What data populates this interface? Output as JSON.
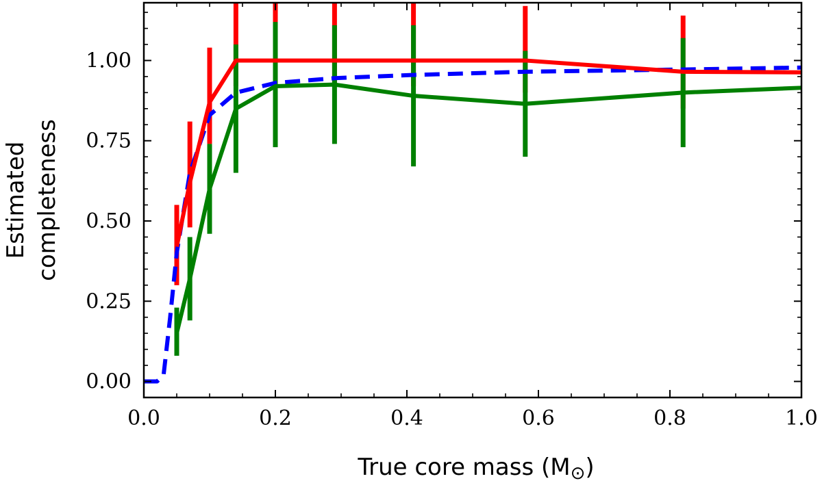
{
  "chart_data": {
    "type": "line",
    "xlabel": "True core mass (M",
    "xlabel_symbol": "⊙",
    "xlabel_close": ")",
    "ylabel_lines": [
      "Estimated",
      "completeness"
    ],
    "xlim": [
      0.0,
      1.0
    ],
    "ylim": [
      -0.05,
      1.18
    ],
    "x_ticks": [
      0.0,
      0.2,
      0.4,
      0.6,
      0.8,
      1.0
    ],
    "x_tick_labels": [
      "0.0",
      "0.2",
      "0.4",
      "0.6",
      "0.8",
      "1.0"
    ],
    "y_ticks": [
      0.0,
      0.25,
      0.5,
      0.75,
      1.0
    ],
    "y_tick_labels": [
      "0.00",
      "0.25",
      "0.50",
      "0.75",
      "1.00"
    ],
    "grid": false,
    "series": [
      {
        "name": "dashed-blue",
        "color": "#0000ff",
        "style": "dashed",
        "x": [
          0.0,
          0.02,
          0.03,
          0.04,
          0.05,
          0.07,
          0.1,
          0.14,
          0.2,
          0.29,
          0.41,
          0.58,
          0.82,
          1.0
        ],
        "y": [
          0.0,
          0.0,
          0.02,
          0.2,
          0.4,
          0.65,
          0.83,
          0.9,
          0.93,
          0.945,
          0.955,
          0.965,
          0.972,
          0.978
        ]
      },
      {
        "name": "red",
        "color": "#ff0000",
        "style": "solid",
        "x": [
          0.05,
          0.07,
          0.1,
          0.14,
          0.2,
          0.29,
          0.41,
          0.58,
          0.82,
          1.0
        ],
        "y": [
          0.42,
          0.62,
          0.87,
          1.0,
          1.0,
          1.0,
          1.0,
          1.0,
          0.965,
          0.963
        ],
        "err_low": [
          0.3,
          0.48,
          0.74,
          0.92,
          0.92,
          0.92,
          0.92,
          0.9,
          0.85,
          null
        ],
        "err_high": [
          0.55,
          0.81,
          1.04,
          1.18,
          1.18,
          1.18,
          1.18,
          1.17,
          1.14,
          null
        ]
      },
      {
        "name": "green",
        "color": "#008000",
        "style": "solid",
        "x": [
          0.05,
          0.07,
          0.1,
          0.14,
          0.2,
          0.29,
          0.41,
          0.58,
          0.82,
          1.0
        ],
        "y": [
          0.15,
          0.32,
          0.6,
          0.85,
          0.92,
          0.925,
          0.89,
          0.865,
          0.9,
          0.915
        ],
        "err_low": [
          0.08,
          0.19,
          0.46,
          0.65,
          0.73,
          0.74,
          0.67,
          0.7,
          0.73,
          null
        ],
        "err_high": [
          0.23,
          0.45,
          0.74,
          1.05,
          1.12,
          1.11,
          1.11,
          1.03,
          1.07,
          null
        ]
      }
    ]
  }
}
